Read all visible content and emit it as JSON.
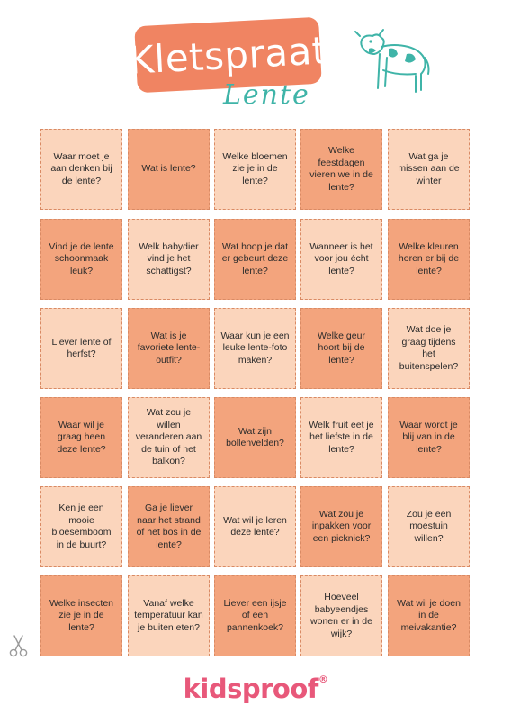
{
  "header": {
    "title": "Kletspraat",
    "subtitle": "Lente"
  },
  "colors": {
    "badge": "#f08462",
    "subtitle": "#3fb4a8",
    "card_light": "#fbd5bc",
    "card_dark": "#f3a47d",
    "logo": "#e8587a"
  },
  "cards": [
    [
      "Waar moet je aan denken bij de lente?",
      "Wat is lente?",
      "Welke bloemen zie je in de lente?",
      "Welke feestdagen vieren we in de lente?",
      "Wat ga je missen aan de winter"
    ],
    [
      "Vind je de lente schoonmaak leuk?",
      "Welk babydier vind je het schattigst?",
      "Wat hoop je dat er gebeurt deze lente?",
      "Wanneer is het voor jou écht lente?",
      "Welke kleuren horen er bij de lente?"
    ],
    [
      "Liever lente of herfst?",
      "Wat is je favoriete lente-outfit?",
      "Waar kun je een leuke lente-foto maken?",
      "Welke geur hoort bij de lente?",
      "Wat doe je graag tijdens het buitenspelen?"
    ],
    [
      "Waar wil je graag heen deze lente?",
      "Wat zou je willen veranderen aan de tuin of het balkon?",
      "Wat zijn bollenvelden?",
      "Welk fruit eet je het liefste in de lente?",
      "Waar wordt je blij van in de lente?"
    ],
    [
      "Ken je een mooie bloesemboom in de buurt?",
      "Ga je liever naar het strand of het bos in de lente?",
      "Wat wil je leren deze lente?",
      "Wat zou je inpakken voor een picknick?",
      "Zou je een moestuin willen?"
    ],
    [
      "Welke insecten zie je in de lente?",
      "Vanaf welke temperatuur kan je buiten eten?",
      "Liever een ijsje of een pannenkoek?",
      "Hoeveel babyeendjes wonen er in de wijk?",
      "Wat wil je doen in de meivakantie?"
    ]
  ],
  "footer": {
    "logo_text": "kidsproof",
    "logo_mark": "®"
  },
  "icons": [
    "cow-icon",
    "scissors-icon"
  ]
}
